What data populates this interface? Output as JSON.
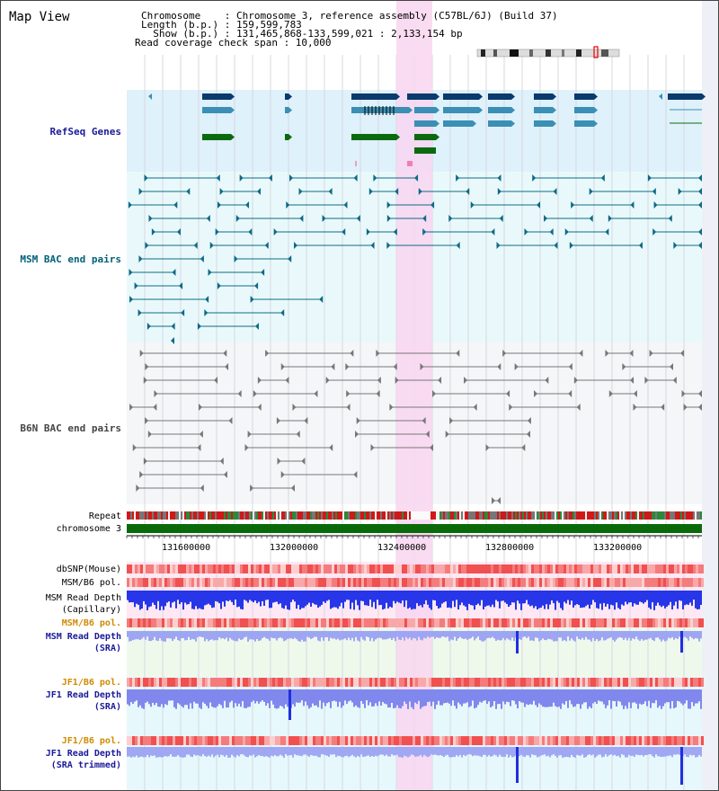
{
  "map": {
    "title": "Map View",
    "info_lines": [
      "Chromosome    : Chromosome 3, reference assembly (C57BL/6J) (Build 37)",
      "Length (b.p.) : 159,599,783",
      "  Show (b.p.) : 131,465,868-133,599,021 : 2,133,154 bp",
      "Read coverage check span : 10,000"
    ]
  },
  "tracks": {
    "refseq": "RefSeq Genes",
    "msm_bac": "MSM BAC end pairs",
    "b6n_bac": "B6N BAC end pairs",
    "repeat": "Repeat",
    "chromosome": "chromosome 3",
    "dbsnp": "dbSNP(Mouse)",
    "msm_b6_pol_1": "MSM/B6 pol.",
    "msm_read_depth_cap_1": "MSM Read Depth",
    "msm_read_depth_cap_2": "(Capillary)",
    "msm_b6_pol_2": "MSM/B6 pol.",
    "msm_read_depth_sra_1": "MSM Read Depth",
    "msm_read_depth_sra_2": "(SRA)",
    "jf1_b6_pol_1": "JF1/B6 pol.",
    "jf1_read_depth_1": "JF1 Read Depth",
    "jf1_read_depth_2": "(SRA)",
    "jf1_b6_pol_2": "JF1/B6 pol.",
    "jf1_read_depth_trim_1": "JF1 Read Depth",
    "jf1_read_depth_trim_2": "(SRA trimmed)"
  },
  "axis": {
    "ticks": [
      "131600000",
      "132000000",
      "132400000",
      "132800000",
      "133200000"
    ]
  },
  "colors": {
    "label_blue": "#1a1a9a",
    "label_teal": "#00607a",
    "label_orange": "#d08a00",
    "highlight": "#f8d6f0",
    "gene_dark": "#0a3a6e",
    "gene_mid": "#3b8fb5",
    "gene_green": "#0b6a10",
    "chrom_green": "#0a6a0a",
    "depth_blue": "#1f2fe0"
  }
}
